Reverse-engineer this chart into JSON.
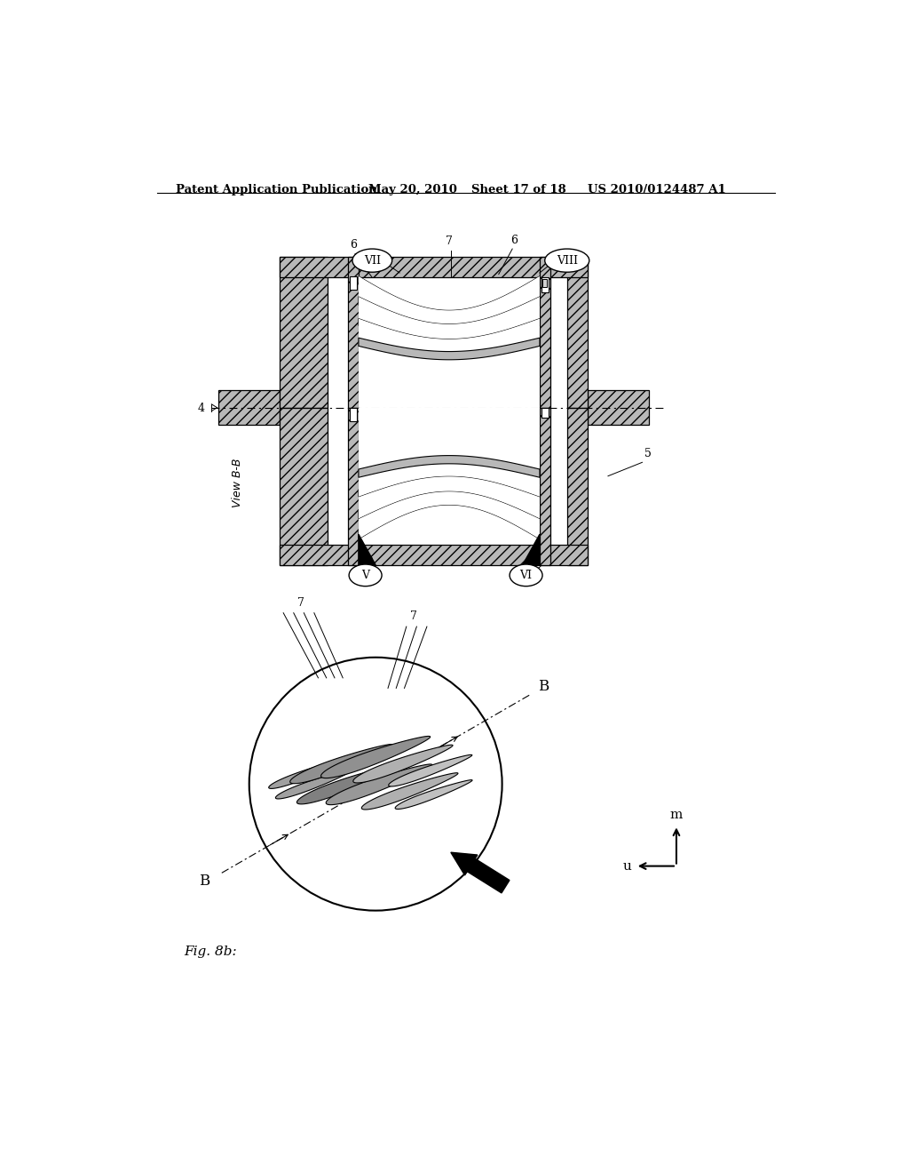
{
  "bg_color": "#ffffff",
  "header_text": "Patent Application Publication",
  "header_date": "May 20, 2010",
  "header_sheet": "Sheet 17 of 18",
  "header_patent": "US 2010/0124487 A1",
  "fig_label": "Fig. 8b:"
}
